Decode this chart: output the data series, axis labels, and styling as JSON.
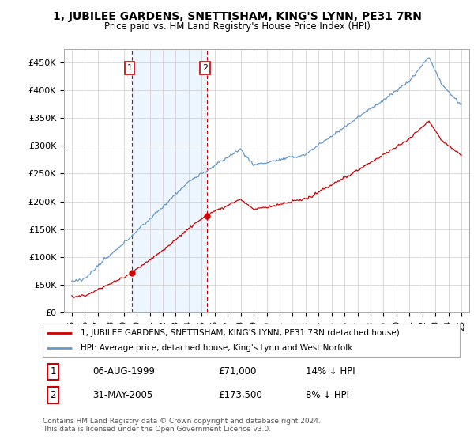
{
  "title": "1, JUBILEE GARDENS, SNETTISHAM, KING'S LYNN, PE31 7RN",
  "subtitle": "Price paid vs. HM Land Registry's House Price Index (HPI)",
  "ylim": [
    0,
    475000
  ],
  "yticks": [
    0,
    50000,
    100000,
    150000,
    200000,
    250000,
    300000,
    350000,
    400000,
    450000
  ],
  "ytick_labels": [
    "£0",
    "£50K",
    "£100K",
    "£150K",
    "£200K",
    "£250K",
    "£300K",
    "£350K",
    "£400K",
    "£450K"
  ],
  "sale1_date": 1999.6,
  "sale1_price": 71000,
  "sale1_label": "1",
  "sale1_text": "06-AUG-1999",
  "sale1_amount": "£71,000",
  "sale1_hpi": "14% ↓ HPI",
  "sale2_date": 2005.42,
  "sale2_price": 173500,
  "sale2_label": "2",
  "sale2_text": "31-MAY-2005",
  "sale2_amount": "£173,500",
  "sale2_hpi": "8% ↓ HPI",
  "legend_line1": "1, JUBILEE GARDENS, SNETTISHAM, KING'S LYNN, PE31 7RN (detached house)",
  "legend_line2": "HPI: Average price, detached house, King's Lynn and West Norfolk",
  "footnote": "Contains HM Land Registry data © Crown copyright and database right 2024.\nThis data is licensed under the Open Government Licence v3.0.",
  "red_color": "#cc0000",
  "blue_color": "#6699cc",
  "blue_fill": "#ddeeff",
  "background_color": "#ffffff",
  "grid_color": "#cccccc"
}
